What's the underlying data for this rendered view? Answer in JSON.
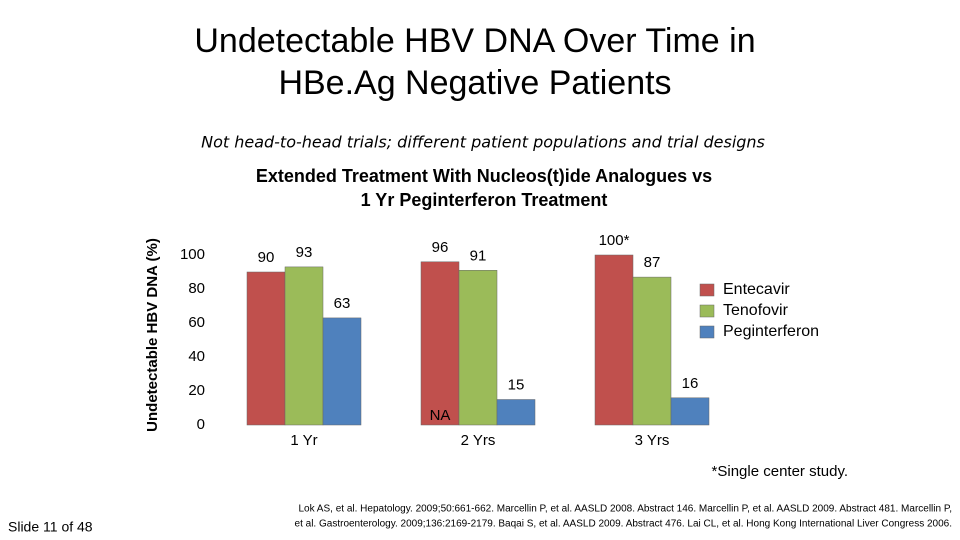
{
  "slide_title": [
    "Undetectable HBV DNA Over Time in",
    "HBe.Ag Negative Patients"
  ],
  "subtitle": "Not head-to-head trials; different patient populations and trial designs",
  "chart_data": {
    "type": "bar",
    "title": [
      "Extended Treatment With Nucleos(t)ide Analogues vs",
      "1 Yr Peginterferon Treatment"
    ],
    "y_label": "Undetectable HBV DNA (%)",
    "categories": [
      "1 Yr",
      "2 Yrs",
      "3 Yrs"
    ],
    "series": [
      {
        "name": "Entecavir",
        "color": "#c0504d",
        "values": [
          90,
          96,
          100
        ],
        "value_labels": [
          "90",
          "96",
          "100*"
        ]
      },
      {
        "name": "Tenofovir",
        "color": "#9bbb59",
        "values": [
          93,
          91,
          87
        ]
      },
      {
        "name": "Peginterferon",
        "color": "#4f81bd",
        "values": [
          63,
          15,
          16
        ]
      }
    ],
    "annotation": "NA",
    "ylim": [
      0,
      100
    ],
    "yticks": [
      0,
      20,
      40,
      60,
      80,
      100
    ],
    "grid": false,
    "legend": "right"
  },
  "footnote": "*Single center study.",
  "slide_number": "Slide 11 of 48",
  "references": [
    "Lok AS, et al. Hepatology. 2009;50:661-662. Marcellin P, et al. AASLD 2008. Abstract 146. Marcellin P, et al. AASLD 2009. Abstract 481. Marcellin P,",
    "et al. Gastroenterology. 2009;136:2169-2179. Baqai S, et al. AASLD 2009. Abstract 476. Lai CL, et al. Hong Kong International Liver Congress 2006."
  ]
}
